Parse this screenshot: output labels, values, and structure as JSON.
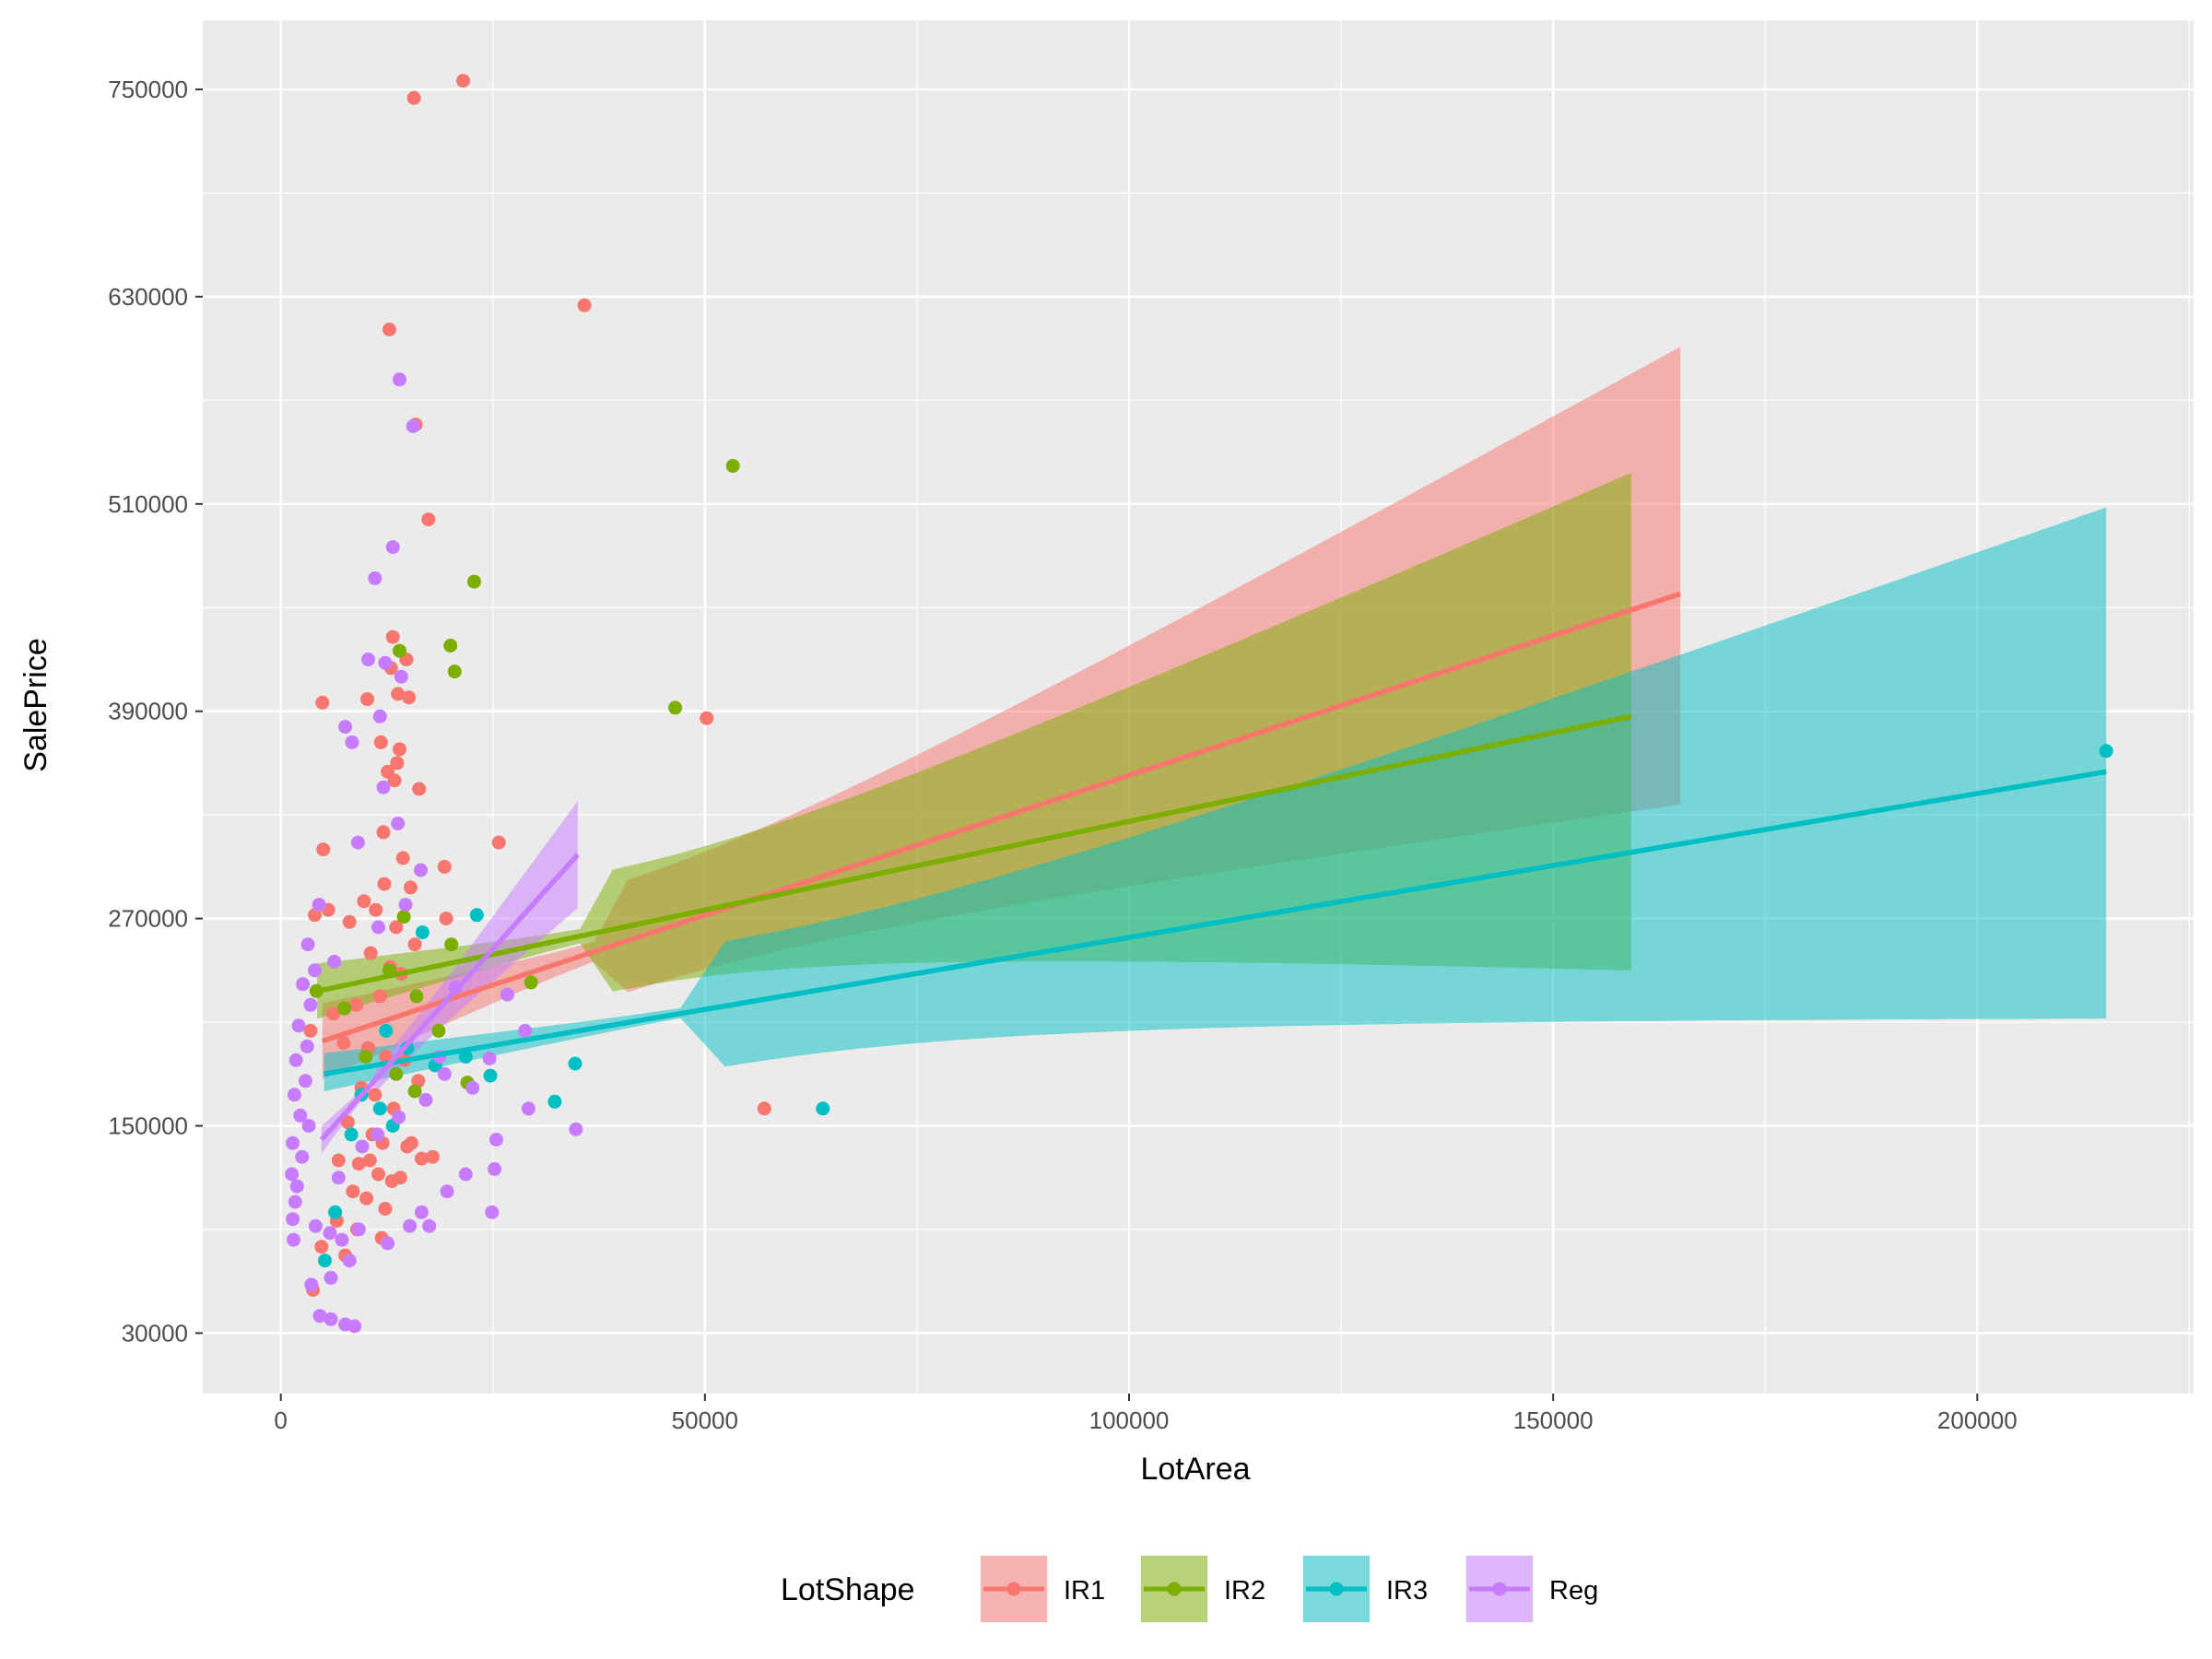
{
  "chart_data": {
    "type": "scatter",
    "title": "",
    "xlabel": "LotArea",
    "ylabel": "SalePrice",
    "xlim": [
      -9200,
      225500
    ],
    "ylim": [
      -5000,
      790000
    ],
    "x_ticks": [
      0,
      50000,
      100000,
      150000,
      200000
    ],
    "x_tick_labels": [
      "0",
      "50000",
      "100000",
      "150000",
      "200000"
    ],
    "y_ticks": [
      30000,
      150000,
      270000,
      390000,
      510000,
      630000,
      750000
    ],
    "y_tick_labels": [
      "30000",
      "150000",
      "270000",
      "390000",
      "510000",
      "630000",
      "750000"
    ],
    "grid": true,
    "legend": {
      "title": "LotShape",
      "position": "bottom"
    },
    "series": [
      {
        "name": "IR1",
        "color": "#F8766D",
        "points": [
          [
            15700,
            745000
          ],
          [
            21500,
            755000
          ],
          [
            35800,
            625000
          ],
          [
            12800,
            611000
          ],
          [
            15900,
            556000
          ],
          [
            17400,
            501000
          ],
          [
            50200,
            386000
          ],
          [
            57000,
            160000
          ],
          [
            25700,
            314000
          ],
          [
            4900,
            395000
          ],
          [
            5000,
            310000
          ],
          [
            13200,
            433000
          ],
          [
            14800,
            420000
          ],
          [
            13000,
            415000
          ],
          [
            13800,
            400000
          ],
          [
            15100,
            398000
          ],
          [
            10200,
            397000
          ],
          [
            11800,
            372000
          ],
          [
            14000,
            368000
          ],
          [
            12600,
            355000
          ],
          [
            13400,
            350000
          ],
          [
            16300,
            345000
          ],
          [
            19300,
            300000
          ],
          [
            14400,
            305000
          ],
          [
            15300,
            288000
          ],
          [
            12200,
            290000
          ],
          [
            9800,
            280000
          ],
          [
            11200,
            275000
          ],
          [
            4000,
            272000
          ],
          [
            5600,
            275000
          ],
          [
            8100,
            268000
          ],
          [
            13600,
            265000
          ],
          [
            15800,
            255000
          ],
          [
            10600,
            250000
          ],
          [
            12900,
            242000
          ],
          [
            14200,
            238000
          ],
          [
            11700,
            225000
          ],
          [
            8900,
            220000
          ],
          [
            6200,
            215000
          ],
          [
            3500,
            205000
          ],
          [
            7400,
            198000
          ],
          [
            10300,
            195000
          ],
          [
            12400,
            190000
          ],
          [
            14600,
            188000
          ],
          [
            16200,
            176000
          ],
          [
            9500,
            172000
          ],
          [
            11100,
            168000
          ],
          [
            13300,
            160000
          ],
          [
            15400,
            140000
          ],
          [
            7900,
            152000
          ],
          [
            10800,
            145000
          ],
          [
            12000,
            140000
          ],
          [
            14900,
            138000
          ],
          [
            17900,
            132000
          ],
          [
            6800,
            130000
          ],
          [
            9200,
            128000
          ],
          [
            11500,
            122000
          ],
          [
            13100,
            118000
          ],
          [
            8500,
            112000
          ],
          [
            10100,
            108000
          ],
          [
            12300,
            102000
          ],
          [
            6600,
            95000
          ],
          [
            9000,
            90000
          ],
          [
            11900,
            85000
          ],
          [
            4800,
            80000
          ],
          [
            7600,
            75000
          ],
          [
            3800,
            55000
          ],
          [
            10500,
            130000
          ],
          [
            14100,
            120000
          ],
          [
            16600,
            131000
          ],
          [
            19500,
            270000
          ],
          [
            12100,
            320000
          ],
          [
            13700,
            360000
          ]
        ]
      },
      {
        "name": "IR2",
        "color": "#7CAE00",
        "points": [
          [
            53300,
            532000
          ],
          [
            22800,
            465000
          ],
          [
            20000,
            428000
          ],
          [
            14000,
            425000
          ],
          [
            20500,
            413000
          ],
          [
            46500,
            392000
          ],
          [
            29500,
            233000
          ],
          [
            20100,
            255000
          ],
          [
            14500,
            271000
          ],
          [
            12800,
            240000
          ],
          [
            16000,
            225000
          ],
          [
            18600,
            205000
          ],
          [
            4200,
            228000
          ],
          [
            7500,
            218000
          ],
          [
            22000,
            175000
          ],
          [
            10000,
            190000
          ],
          [
            13600,
            180000
          ],
          [
            15800,
            170000
          ]
        ]
      },
      {
        "name": "IR3",
        "color": "#00BFC4",
        "points": [
          [
            215200,
            367000
          ],
          [
            63900,
            160000
          ],
          [
            23100,
            272000
          ],
          [
            24700,
            179000
          ],
          [
            32300,
            164000
          ],
          [
            34700,
            186000
          ],
          [
            21800,
            190000
          ],
          [
            16700,
            262000
          ],
          [
            12400,
            205000
          ],
          [
            14900,
            195000
          ],
          [
            18200,
            185000
          ],
          [
            9500,
            168000
          ],
          [
            11700,
            160000
          ],
          [
            13200,
            150000
          ],
          [
            6400,
            100000
          ],
          [
            5200,
            72000
          ],
          [
            8300,
            145000
          ]
        ]
      },
      {
        "name": "Reg",
        "color": "#C77CFF",
        "points": [
          [
            14000,
            582000
          ],
          [
            15600,
            555000
          ],
          [
            13200,
            485000
          ],
          [
            11100,
            467000
          ],
          [
            10300,
            420000
          ],
          [
            12300,
            418000
          ],
          [
            14200,
            410000
          ],
          [
            11700,
            387000
          ],
          [
            7600,
            381000
          ],
          [
            8400,
            372000
          ],
          [
            12100,
            346000
          ],
          [
            13800,
            325000
          ],
          [
            9100,
            314000
          ],
          [
            16500,
            298000
          ],
          [
            14700,
            278000
          ],
          [
            11500,
            265000
          ],
          [
            4500,
            278000
          ],
          [
            3200,
            255000
          ],
          [
            6300,
            245000
          ],
          [
            4000,
            240000
          ],
          [
            2600,
            232000
          ],
          [
            3500,
            220000
          ],
          [
            2100,
            208000
          ],
          [
            3100,
            196000
          ],
          [
            1800,
            188000
          ],
          [
            2900,
            176000
          ],
          [
            1600,
            168000
          ],
          [
            2300,
            156000
          ],
          [
            3300,
            150000
          ],
          [
            1400,
            140000
          ],
          [
            2500,
            132000
          ],
          [
            1300,
            122000
          ],
          [
            1900,
            115000
          ],
          [
            1700,
            106000
          ],
          [
            1400,
            96000
          ],
          [
            1500,
            84000
          ],
          [
            4100,
            92000
          ],
          [
            5800,
            88000
          ],
          [
            7200,
            84000
          ],
          [
            9200,
            90000
          ],
          [
            8100,
            72000
          ],
          [
            5900,
            62000
          ],
          [
            3600,
            58000
          ],
          [
            4600,
            40000
          ],
          [
            7600,
            35000
          ],
          [
            8700,
            34000
          ],
          [
            5900,
            38000
          ],
          [
            12600,
            82000
          ],
          [
            15200,
            92000
          ],
          [
            16600,
            100000
          ],
          [
            17500,
            92000
          ],
          [
            19600,
            112000
          ],
          [
            21800,
            122000
          ],
          [
            25400,
            142000
          ],
          [
            25200,
            125000
          ],
          [
            24900,
            100000
          ],
          [
            34800,
            148000
          ],
          [
            29200,
            160000
          ],
          [
            22600,
            172000
          ],
          [
            24600,
            189000
          ],
          [
            28800,
            205000
          ],
          [
            26700,
            226000
          ],
          [
            18700,
            190000
          ],
          [
            20600,
            230000
          ],
          [
            6800,
            120000
          ],
          [
            9600,
            138000
          ],
          [
            11400,
            145000
          ],
          [
            13900,
            155000
          ],
          [
            17100,
            165000
          ],
          [
            19300,
            180000
          ]
        ]
      }
    ],
    "trend_lines": [
      {
        "name": "IR1",
        "x": [
          4900,
          165000
        ],
        "y": [
          199000,
          458000
        ],
        "band_lower": [
          177000,
          336000
        ],
        "band_upper": [
          221000,
          601000
        ]
      },
      {
        "name": "IR2",
        "x": [
          4300,
          159200
        ],
        "y": [
          228000,
          387000
        ],
        "band_lower": [
          212000,
          240000
        ],
        "band_upper": [
          244000,
          528000
        ]
      },
      {
        "name": "IR3",
        "x": [
          5100,
          215200
        ],
        "y": [
          180000,
          355000
        ],
        "band_lower": [
          170000,
          212000
        ],
        "band_upper": [
          192000,
          508000
        ]
      },
      {
        "name": "Reg",
        "x": [
          4800,
          35000
        ],
        "y": [
          142000,
          307000
        ],
        "band_lower": [
          134000,
          276000
        ],
        "band_upper": [
          150000,
          338000
        ]
      }
    ]
  }
}
